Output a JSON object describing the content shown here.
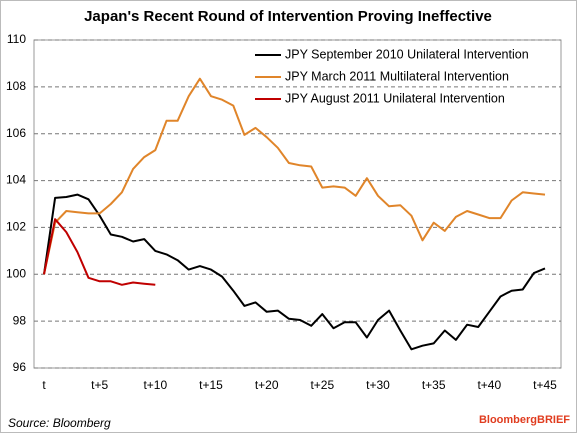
{
  "chart_data": {
    "type": "line",
    "title": "Japan's Recent Round of Intervention Proving Ineffective",
    "categories": [
      "t",
      null,
      null,
      null,
      null,
      "t+5",
      null,
      null,
      null,
      null,
      "t+10",
      null,
      null,
      null,
      null,
      "t+15",
      null,
      null,
      null,
      null,
      "t+20",
      null,
      null,
      null,
      null,
      "t+25",
      null,
      null,
      null,
      null,
      "t+30",
      null,
      null,
      null,
      null,
      "t+35",
      null,
      null,
      null,
      null,
      "t+40",
      null,
      null,
      null,
      null,
      "t+45"
    ],
    "series": [
      {
        "name": "JPY September 2010 Unilateral Intervention",
        "color": "#000000",
        "values": [
          100,
          103.26,
          103.3,
          103.4,
          103.2,
          102.5,
          101.7,
          101.6,
          101.4,
          101.5,
          101.0,
          100.85,
          100.6,
          100.2,
          100.35,
          100.2,
          99.9,
          99.3,
          98.65,
          98.8,
          98.4,
          98.45,
          98.1,
          98.05,
          97.8,
          98.3,
          97.7,
          97.95,
          97.95,
          97.3,
          98.05,
          98.45,
          97.6,
          96.8,
          96.95,
          97.05,
          97.6,
          97.2,
          97.85,
          97.75,
          98.4,
          99.05,
          99.3,
          99.35,
          100.05,
          100.25
        ]
      },
      {
        "name": "JPY March 2011 Multilateral Intervention",
        "color": "#e0852a",
        "values": [
          100,
          102.2,
          102.7,
          102.65,
          102.6,
          102.6,
          103.0,
          103.5,
          104.5,
          105.0,
          105.3,
          106.55,
          106.55,
          107.6,
          108.35,
          107.6,
          107.45,
          107.2,
          105.95,
          106.25,
          105.85,
          105.4,
          104.75,
          104.65,
          104.6,
          103.7,
          103.75,
          103.7,
          103.35,
          104.1,
          103.35,
          102.9,
          102.95,
          102.5,
          101.45,
          102.2,
          101.85,
          102.45,
          102.7,
          102.55,
          102.4,
          102.4,
          103.15,
          103.5,
          103.45,
          103.4
        ]
      },
      {
        "name": "JPY August 2011 Unilateral Intervention",
        "color": "#c00000",
        "values": [
          100,
          102.35,
          101.8,
          100.95,
          99.85,
          99.7,
          99.7,
          99.55,
          99.65,
          99.6,
          99.55,
          null,
          null,
          null,
          null,
          null,
          null,
          null,
          null,
          null,
          null,
          null,
          null,
          null,
          null,
          null,
          null,
          null,
          null,
          null,
          null,
          null,
          null,
          null,
          null,
          null,
          null,
          null,
          null,
          null,
          null,
          null,
          null,
          null,
          null,
          null
        ]
      }
    ],
    "ylim": [
      96,
      110
    ],
    "yticks": [
      96,
      98,
      100,
      102,
      104,
      106,
      108,
      110
    ],
    "grid": true,
    "legend": "top-right",
    "source": "Source: Bloomberg",
    "brand": "BloombergBRIEF"
  }
}
